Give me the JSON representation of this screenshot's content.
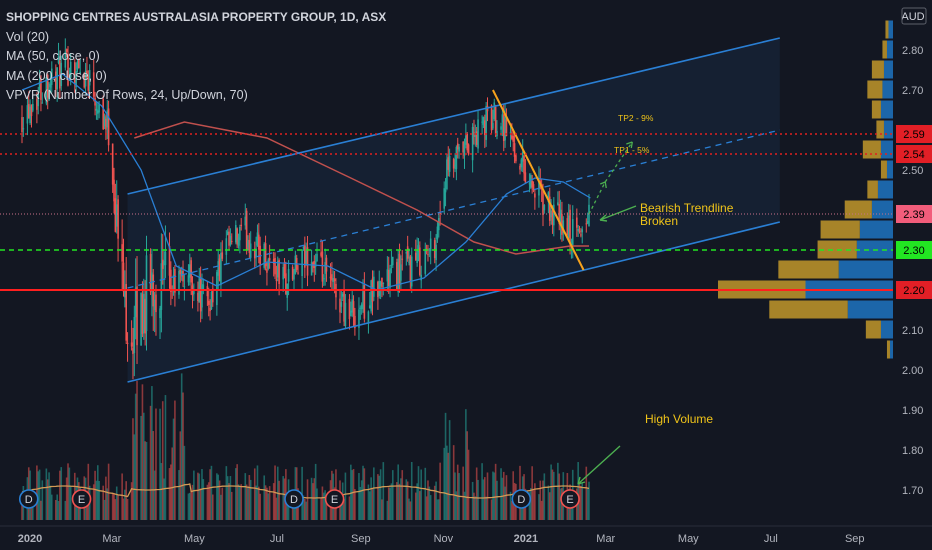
{
  "legend": {
    "title": "SHOPPING CENTRES AUSTRALASIA PROPERTY GROUP, 1D, ASX",
    "vol": "Vol (20)",
    "ma50": "MA (50, close, 0)",
    "ma200": "MA (200, close, 0)",
    "vpvr": "VPVR (Number Of Rows, 24, Up/Down, 70)"
  },
  "currency": "AUD",
  "colors": {
    "background": "#131722",
    "up": "#26a69a",
    "down": "#ef5350",
    "channel": "#2a7fd4",
    "ma200": "#c0504d",
    "trendline": "#f7a31c",
    "support_red": "#ff1f1f",
    "level_green": "#22e622",
    "target_red": "#e02020",
    "arrow_green": "#4caf50",
    "vpvr_up": "#1e6fb8",
    "vpvr_down": "#b8902a"
  },
  "annotations": {
    "tp2": "TP2 - 9%",
    "tp1": "TP1 - 5%",
    "bearish": "Bearish Trendline",
    "broken": "Broken",
    "high_volume": "High Volume"
  },
  "events": {
    "dividend": "D",
    "earnings": "E"
  },
  "chart_data": {
    "type": "candlestick",
    "title": "SHOPPING CENTRES AUSTRALASIA PROPERTY GROUP, 1D, ASX",
    "y_axis": {
      "ticks": [
        "2.80",
        "2.70",
        "2.50",
        "2.10",
        "2.00",
        "1.90",
        "1.80",
        "1.70"
      ],
      "ylim": [
        1.63,
        2.92
      ]
    },
    "x_axis": {
      "ticks": [
        "2020",
        "Mar",
        "May",
        "Jul",
        "Sep",
        "Nov",
        "2021",
        "Mar",
        "May",
        "Jul",
        "Sep"
      ]
    },
    "price_labels": [
      {
        "value": "2.59",
        "style": "red"
      },
      {
        "value": "2.54",
        "style": "red"
      },
      {
        "value": "2.39",
        "style": "pink"
      },
      {
        "value": "2.30",
        "style": "green"
      },
      {
        "value": "2.20",
        "style": "red"
      }
    ],
    "horizontal_levels": [
      {
        "price": 2.59,
        "style": "dotted-red"
      },
      {
        "price": 2.54,
        "style": "dotted-red"
      },
      {
        "price": 2.39,
        "style": "dotted-pink"
      },
      {
        "price": 2.3,
        "style": "dashed-green"
      },
      {
        "price": 2.2,
        "style": "solid-red"
      }
    ],
    "channel": {
      "upper": [
        [
          "2020-03-20",
          2.44
        ],
        [
          "2021-07-15",
          2.83
        ]
      ],
      "lower": [
        [
          "2020-03-20",
          1.97
        ],
        [
          "2021-07-15",
          2.37
        ]
      ]
    },
    "bearish_trendline": [
      [
        "2020-12-15",
        2.7
      ],
      [
        "2021-02-20",
        2.25
      ]
    ],
    "price_path": [
      [
        "2020-01-02",
        2.64
      ],
      [
        "2020-01-20",
        2.72
      ],
      [
        "2020-02-07",
        2.76
      ],
      [
        "2020-02-20",
        2.74
      ],
      [
        "2020-03-06",
        2.6
      ],
      [
        "2020-03-16",
        2.22
      ],
      [
        "2020-03-23",
        2.08
      ],
      [
        "2020-04-06",
        2.22
      ],
      [
        "2020-04-20",
        2.2
      ],
      [
        "2020-05-04",
        2.24
      ],
      [
        "2020-05-18",
        2.16
      ],
      [
        "2020-06-01",
        2.3
      ],
      [
        "2020-06-15",
        2.34
      ],
      [
        "2020-07-01",
        2.28
      ],
      [
        "2020-07-15",
        2.22
      ],
      [
        "2020-08-01",
        2.28
      ],
      [
        "2020-08-15",
        2.22
      ],
      [
        "2020-09-01",
        2.14
      ],
      [
        "2020-09-15",
        2.18
      ],
      [
        "2020-10-01",
        2.24
      ],
      [
        "2020-10-15",
        2.26
      ],
      [
        "2020-11-01",
        2.3
      ],
      [
        "2020-11-10",
        2.48
      ],
      [
        "2020-11-25",
        2.55
      ],
      [
        "2020-12-10",
        2.62
      ],
      [
        "2020-12-20",
        2.64
      ],
      [
        "2021-01-05",
        2.52
      ],
      [
        "2021-01-20",
        2.42
      ],
      [
        "2021-02-05",
        2.36
      ],
      [
        "2021-02-15",
        2.33
      ],
      [
        "2021-02-24",
        2.39
      ]
    ],
    "ma200_path": [
      [
        "2020-03-25",
        2.58
      ],
      [
        "2020-05-01",
        2.62
      ],
      [
        "2020-07-01",
        2.58
      ],
      [
        "2020-09-01",
        2.48
      ],
      [
        "2020-10-20",
        2.4
      ],
      [
        "2020-12-01",
        2.32
      ],
      [
        "2021-01-01",
        2.29
      ],
      [
        "2021-02-10",
        2.31
      ],
      [
        "2021-02-24",
        2.31
      ]
    ],
    "ma50_path": [
      [
        "2020-01-02",
        2.7
      ],
      [
        "2020-02-01",
        2.74
      ],
      [
        "2020-03-01",
        2.66
      ],
      [
        "2020-03-30",
        2.5
      ],
      [
        "2020-04-25",
        2.26
      ],
      [
        "2020-05-25",
        2.21
      ],
      [
        "2020-07-01",
        2.27
      ],
      [
        "2020-08-15",
        2.26
      ],
      [
        "2020-09-20",
        2.2
      ],
      [
        "2020-10-25",
        2.23
      ],
      [
        "2020-11-25",
        2.32
      ],
      [
        "2020-12-25",
        2.44
      ],
      [
        "2021-01-15",
        2.48
      ],
      [
        "2021-02-05",
        2.47
      ],
      [
        "2021-02-25",
        2.43
      ]
    ],
    "projection_path": [
      [
        "2021-02-24",
        2.39
      ],
      [
        "2021-03-08",
        2.47
      ],
      [
        "2021-03-28",
        2.57
      ]
    ],
    "vpvr": [
      {
        "price": 2.85,
        "up": 3,
        "down": 2
      },
      {
        "price": 2.8,
        "up": 4,
        "down": 3
      },
      {
        "price": 2.75,
        "up": 6,
        "down": 8
      },
      {
        "price": 2.7,
        "up": 7,
        "down": 10
      },
      {
        "price": 2.65,
        "up": 8,
        "down": 6
      },
      {
        "price": 2.6,
        "up": 6,
        "down": 5
      },
      {
        "price": 2.55,
        "up": 8,
        "down": 12
      },
      {
        "price": 2.5,
        "up": 4,
        "down": 4
      },
      {
        "price": 2.45,
        "up": 10,
        "down": 7
      },
      {
        "price": 2.4,
        "up": 14,
        "down": 18
      },
      {
        "price": 2.35,
        "up": 22,
        "down": 26
      },
      {
        "price": 2.3,
        "up": 24,
        "down": 26
      },
      {
        "price": 2.25,
        "up": 36,
        "down": 40
      },
      {
        "price": 2.2,
        "up": 58,
        "down": 58
      },
      {
        "price": 2.15,
        "up": 30,
        "down": 52
      },
      {
        "price": 2.1,
        "up": 8,
        "down": 10
      },
      {
        "price": 2.05,
        "up": 2,
        "down": 2
      }
    ],
    "volume_events": [
      {
        "type": "dividend",
        "date": "2020-01-07"
      },
      {
        "type": "earnings",
        "date": "2020-02-15"
      },
      {
        "type": "dividend",
        "date": "2020-07-21"
      },
      {
        "type": "earnings",
        "date": "2020-08-20"
      },
      {
        "type": "dividend",
        "date": "2021-01-05"
      },
      {
        "type": "earnings",
        "date": "2021-02-10"
      }
    ]
  }
}
